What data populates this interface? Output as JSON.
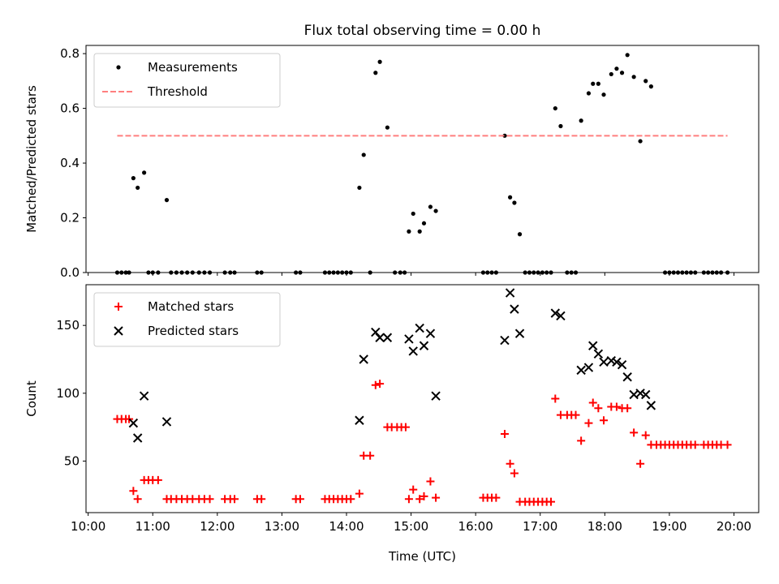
{
  "chart_data": [
    {
      "type": "scatter",
      "title": "Flux total observing time = 0.00 h",
      "xlabel": "",
      "ylabel": "Matched/Predicted stars",
      "xlim": [
        "09:58",
        "20:23"
      ],
      "ylim": [
        0,
        0.83
      ],
      "yticks": [
        0.0,
        0.2,
        0.4,
        0.6,
        0.8
      ],
      "ytick_labels": [
        "0.0",
        "0.2",
        "0.4",
        "0.6",
        "0.8"
      ],
      "legend_position": "top-left",
      "grid": false,
      "series": [
        {
          "name": "Measurements",
          "marker": "dot",
          "color": "#000000",
          "points": [
            [
              "10:27",
              0
            ],
            [
              "10:31",
              0
            ],
            [
              "10:35",
              0
            ],
            [
              "10:38",
              0
            ],
            [
              "10:42",
              0.345
            ],
            [
              "10:46",
              0.31
            ],
            [
              "10:52",
              0.365
            ],
            [
              "10:56",
              0
            ],
            [
              "11:00",
              0
            ],
            [
              "11:05",
              0
            ],
            [
              "11:13",
              0.265
            ],
            [
              "11:17",
              0
            ],
            [
              "11:22",
              0
            ],
            [
              "11:27",
              0
            ],
            [
              "11:32",
              0
            ],
            [
              "11:37",
              0
            ],
            [
              "11:43",
              0
            ],
            [
              "11:48",
              0
            ],
            [
              "11:53",
              0
            ],
            [
              "12:07",
              0
            ],
            [
              "12:12",
              0
            ],
            [
              "12:16",
              0
            ],
            [
              "12:37",
              0
            ],
            [
              "12:41",
              0
            ],
            [
              "13:13",
              0
            ],
            [
              "13:17",
              0
            ],
            [
              "13:40",
              0
            ],
            [
              "13:44",
              0
            ],
            [
              "13:48",
              0
            ],
            [
              "13:52",
              0
            ],
            [
              "13:56",
              0
            ],
            [
              "14:00",
              0
            ],
            [
              "14:04",
              0
            ],
            [
              "14:12",
              0.31
            ],
            [
              "14:16",
              0.43
            ],
            [
              "14:22",
              0
            ],
            [
              "14:27",
              0.73
            ],
            [
              "14:31",
              0.77
            ],
            [
              "14:38",
              0.53
            ],
            [
              "14:45",
              0
            ],
            [
              "14:50",
              0
            ],
            [
              "14:54",
              0
            ],
            [
              "14:58",
              0.15
            ],
            [
              "15:02",
              0.215
            ],
            [
              "15:08",
              0.15
            ],
            [
              "15:12",
              0.18
            ],
            [
              "15:18",
              0.24
            ],
            [
              "15:23",
              0.225
            ],
            [
              "16:07",
              0
            ],
            [
              "16:11",
              0
            ],
            [
              "16:15",
              0
            ],
            [
              "16:19",
              0
            ],
            [
              "16:27",
              0.5
            ],
            [
              "16:32",
              0.275
            ],
            [
              "16:36",
              0.255
            ],
            [
              "16:41",
              0.14
            ],
            [
              "16:46",
              0
            ],
            [
              "16:50",
              0
            ],
            [
              "16:54",
              0
            ],
            [
              "16:58",
              0
            ],
            [
              "17:02",
              0
            ],
            [
              "17:06",
              0
            ],
            [
              "17:10",
              0
            ],
            [
              "17:14",
              0.6
            ],
            [
              "17:19",
              0.535
            ],
            [
              "17:25",
              0
            ],
            [
              "17:29",
              0
            ],
            [
              "17:33",
              0
            ],
            [
              "17:38",
              0.555
            ],
            [
              "17:45",
              0.655
            ],
            [
              "17:49",
              0.69
            ],
            [
              "17:54",
              0.69
            ],
            [
              "17:59",
              0.65
            ],
            [
              "18:06",
              0.725
            ],
            [
              "18:11",
              0.745
            ],
            [
              "18:16",
              0.73
            ],
            [
              "18:21",
              0.795
            ],
            [
              "18:27",
              0.715
            ],
            [
              "18:33",
              0.48
            ],
            [
              "18:38",
              0.7
            ],
            [
              "18:43",
              0.68
            ],
            [
              "18:56",
              0
            ],
            [
              "19:00",
              0
            ],
            [
              "19:04",
              0
            ],
            [
              "19:08",
              0
            ],
            [
              "19:12",
              0
            ],
            [
              "19:16",
              0
            ],
            [
              "19:20",
              0
            ],
            [
              "19:24",
              0
            ],
            [
              "19:32",
              0
            ],
            [
              "19:36",
              0
            ],
            [
              "19:40",
              0
            ],
            [
              "19:44",
              0
            ],
            [
              "19:48",
              0
            ],
            [
              "19:54",
              0
            ]
          ]
        },
        {
          "name": "Threshold",
          "marker": "dashed-line",
          "color": "#ff7f7f",
          "points": [
            [
              "10:27",
              0.5
            ],
            [
              "19:54",
              0.5
            ]
          ]
        }
      ]
    },
    {
      "type": "scatter",
      "title": "",
      "xlabel": "Time (UTC)",
      "ylabel": "Count",
      "xlim": [
        "09:58",
        "20:23"
      ],
      "ylim": [
        12,
        180
      ],
      "yticks": [
        50,
        100,
        150
      ],
      "ytick_labels": [
        "50",
        "100",
        "150"
      ],
      "xticks": [
        "10:00",
        "11:00",
        "12:00",
        "13:00",
        "14:00",
        "15:00",
        "16:00",
        "17:00",
        "18:00",
        "19:00",
        "20:00"
      ],
      "legend_position": "top-left",
      "grid": false,
      "series": [
        {
          "name": "Matched stars",
          "marker": "plus",
          "color": "#ff0000",
          "points": [
            [
              "10:27",
              81
            ],
            [
              "10:31",
              81
            ],
            [
              "10:35",
              81
            ],
            [
              "10:38",
              81
            ],
            [
              "10:42",
              28
            ],
            [
              "10:46",
              22
            ],
            [
              "10:52",
              36
            ],
            [
              "10:56",
              36
            ],
            [
              "11:00",
              36
            ],
            [
              "11:05",
              36
            ],
            [
              "11:13",
              22
            ],
            [
              "11:17",
              22
            ],
            [
              "11:22",
              22
            ],
            [
              "11:27",
              22
            ],
            [
              "11:32",
              22
            ],
            [
              "11:37",
              22
            ],
            [
              "11:43",
              22
            ],
            [
              "11:48",
              22
            ],
            [
              "11:53",
              22
            ],
            [
              "12:07",
              22
            ],
            [
              "12:12",
              22
            ],
            [
              "12:16",
              22
            ],
            [
              "12:37",
              22
            ],
            [
              "12:41",
              22
            ],
            [
              "13:13",
              22
            ],
            [
              "13:17",
              22
            ],
            [
              "13:40",
              22
            ],
            [
              "13:44",
              22
            ],
            [
              "13:48",
              22
            ],
            [
              "13:52",
              22
            ],
            [
              "13:56",
              22
            ],
            [
              "14:00",
              22
            ],
            [
              "14:04",
              22
            ],
            [
              "14:12",
              26
            ],
            [
              "14:16",
              54
            ],
            [
              "14:22",
              54
            ],
            [
              "14:27",
              106
            ],
            [
              "14:31",
              107
            ],
            [
              "14:38",
              75
            ],
            [
              "14:42",
              75
            ],
            [
              "14:47",
              75
            ],
            [
              "14:51",
              75
            ],
            [
              "14:55",
              75
            ],
            [
              "14:58",
              22
            ],
            [
              "15:02",
              29
            ],
            [
              "15:08",
              22
            ],
            [
              "15:12",
              24
            ],
            [
              "15:18",
              35
            ],
            [
              "15:23",
              23
            ],
            [
              "16:07",
              23
            ],
            [
              "16:11",
              23
            ],
            [
              "16:15",
              23
            ],
            [
              "16:19",
              23
            ],
            [
              "16:27",
              70
            ],
            [
              "16:32",
              48
            ],
            [
              "16:36",
              41
            ],
            [
              "16:41",
              20
            ],
            [
              "16:46",
              20
            ],
            [
              "16:50",
              20
            ],
            [
              "16:54",
              20
            ],
            [
              "16:58",
              20
            ],
            [
              "17:02",
              20
            ],
            [
              "17:06",
              20
            ],
            [
              "17:10",
              20
            ],
            [
              "17:14",
              96
            ],
            [
              "17:19",
              84
            ],
            [
              "17:25",
              84
            ],
            [
              "17:29",
              84
            ],
            [
              "17:33",
              84
            ],
            [
              "17:38",
              65
            ],
            [
              "17:45",
              78
            ],
            [
              "17:49",
              93
            ],
            [
              "17:54",
              89
            ],
            [
              "17:59",
              80
            ],
            [
              "18:06",
              90
            ],
            [
              "18:11",
              90
            ],
            [
              "18:16",
              89
            ],
            [
              "18:21",
              89
            ],
            [
              "18:27",
              71
            ],
            [
              "18:33",
              48
            ],
            [
              "18:38",
              69
            ],
            [
              "18:43",
              62
            ],
            [
              "18:48",
              62
            ],
            [
              "18:52",
              62
            ],
            [
              "18:56",
              62
            ],
            [
              "19:00",
              62
            ],
            [
              "19:04",
              62
            ],
            [
              "19:08",
              62
            ],
            [
              "19:12",
              62
            ],
            [
              "19:16",
              62
            ],
            [
              "19:20",
              62
            ],
            [
              "19:24",
              62
            ],
            [
              "19:32",
              62
            ],
            [
              "19:36",
              62
            ],
            [
              "19:40",
              62
            ],
            [
              "19:44",
              62
            ],
            [
              "19:48",
              62
            ],
            [
              "19:54",
              62
            ]
          ]
        },
        {
          "name": "Predicted stars",
          "marker": "x",
          "color": "#000000",
          "points": [
            [
              "10:42",
              78
            ],
            [
              "10:46",
              67
            ],
            [
              "10:52",
              98
            ],
            [
              "11:13",
              79
            ],
            [
              "14:12",
              80
            ],
            [
              "14:16",
              125
            ],
            [
              "14:27",
              145
            ],
            [
              "14:31",
              141
            ],
            [
              "14:38",
              141
            ],
            [
              "14:58",
              140
            ],
            [
              "15:02",
              131
            ],
            [
              "15:08",
              148
            ],
            [
              "15:12",
              135
            ],
            [
              "15:18",
              144
            ],
            [
              "15:23",
              98
            ],
            [
              "16:27",
              139
            ],
            [
              "16:32",
              174
            ],
            [
              "16:36",
              162
            ],
            [
              "16:41",
              144
            ],
            [
              "17:14",
              159
            ],
            [
              "17:19",
              157
            ],
            [
              "17:38",
              117
            ],
            [
              "17:45",
              119
            ],
            [
              "17:49",
              135
            ],
            [
              "17:54",
              129
            ],
            [
              "17:59",
              123
            ],
            [
              "18:06",
              124
            ],
            [
              "18:11",
              123
            ],
            [
              "18:16",
              121
            ],
            [
              "18:21",
              112
            ],
            [
              "18:27",
              99
            ],
            [
              "18:33",
              100
            ],
            [
              "18:38",
              99
            ],
            [
              "18:43",
              91
            ]
          ]
        }
      ]
    }
  ]
}
